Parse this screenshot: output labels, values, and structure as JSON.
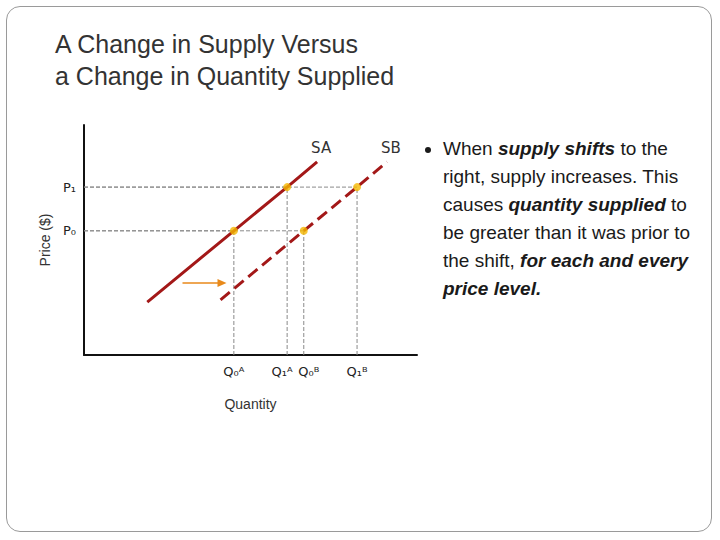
{
  "chart_data": {
    "type": "line",
    "title": "A Change in Supply Versus\na Change in Quantity Supplied",
    "x_label": "Quantity",
    "y_label": "Price ($)",
    "xlim": [
      0,
      10
    ],
    "ylim": [
      0,
      10
    ],
    "xticks": [
      {
        "value": 4.5,
        "label": "Q₀ᴬ"
      },
      {
        "value": 6.1,
        "label": "Q₁ᴬ"
      },
      {
        "value": 6.6,
        "label": "Q₀ᴮ"
      },
      {
        "value": 8.2,
        "label": "Q₁ᴮ"
      }
    ],
    "yticks": [
      {
        "value": 5.4,
        "label": "P₀"
      },
      {
        "value": 7.3,
        "label": "P₁"
      }
    ],
    "grid": false,
    "series": [
      {
        "name": "SA",
        "type": "line",
        "color": "#a31818",
        "line_style": "solid",
        "marker": "none",
        "x": [
          1.9,
          4.5,
          6.1,
          7.0
        ],
        "values": [
          2.3,
          5.4,
          7.3,
          8.4
        ]
      },
      {
        "name": "SB",
        "type": "line",
        "color": "#a31818",
        "line_style": "dashed",
        "marker": "none",
        "x": [
          4.1,
          6.6,
          8.2,
          9.1
        ],
        "values": [
          2.4,
          5.4,
          7.3,
          8.4
        ]
      },
      {
        "type": "scatter",
        "color": "#f5b800",
        "marker": "circle",
        "x": [
          4.5,
          6.1,
          6.6,
          8.2
        ],
        "values": [
          5.4,
          7.3,
          5.4,
          7.3
        ]
      }
    ],
    "annotations": [
      [
        "When ",
        "supply shifts",
        " to the right, supply increases. This causes ",
        "quantity supplied",
        " to be greater than it was prior to the shift, ",
        "for each and every price level."
      ]
    ]
  }
}
